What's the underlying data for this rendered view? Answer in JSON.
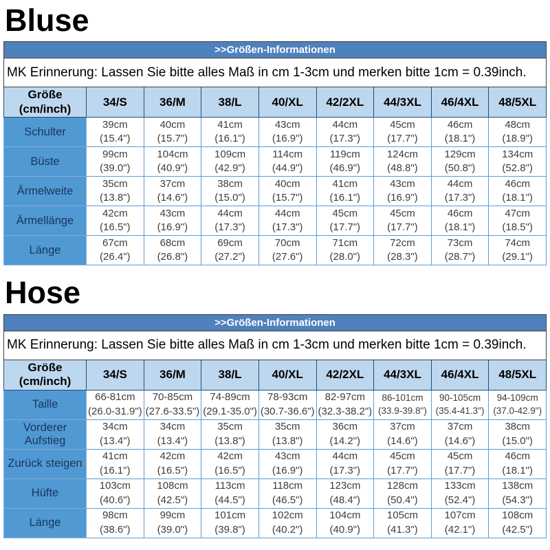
{
  "colors": {
    "info_bar_bg": "#4f81bd",
    "info_bar_text": "#ffffff",
    "column_header_bg": "#bdd7ee",
    "row_label_bg": "#5199d3",
    "row_label_text": "#17375e",
    "data_cell_border": "#5b9bd5",
    "header_cell_border": "#1f4e79"
  },
  "sections": [
    {
      "id": "bluse",
      "title": "Bluse",
      "info_header": ">>Größen-Informationen",
      "reminder": "MK Erinnerung: Lassen Sie bitte alles Maß in cm 1-3cm und merken bitte 1cm = 0.39inch.",
      "corner": {
        "line1": "Größe",
        "line2": "(cm/inch)"
      },
      "sizes": [
        "34/S",
        "36/M",
        "38/L",
        "40/XL",
        "42/2XL",
        "44/3XL",
        "46/4XL",
        "48/5XL"
      ],
      "rows": [
        {
          "label": "Schulter",
          "cells": [
            {
              "cm": "39cm",
              "inch": "(15.4\")"
            },
            {
              "cm": "40cm",
              "inch": "(15.7\")"
            },
            {
              "cm": "41cm",
              "inch": "(16.1\")"
            },
            {
              "cm": "43cm",
              "inch": "(16.9\")"
            },
            {
              "cm": "44cm",
              "inch": "(17.3\")"
            },
            {
              "cm": "45cm",
              "inch": "(17.7\")"
            },
            {
              "cm": "46cm",
              "inch": "(18.1\")"
            },
            {
              "cm": "48cm",
              "inch": "(18.9\")"
            }
          ]
        },
        {
          "label": "Büste",
          "cells": [
            {
              "cm": "99cm",
              "inch": "(39.0\")"
            },
            {
              "cm": "104cm",
              "inch": "(40.9\")"
            },
            {
              "cm": "109cm",
              "inch": "(42.9\")"
            },
            {
              "cm": "114cm",
              "inch": "(44.9\")"
            },
            {
              "cm": "119cm",
              "inch": "(46.9\")"
            },
            {
              "cm": "124cm",
              "inch": "(48.8\")"
            },
            {
              "cm": "129cm",
              "inch": "(50.8\")"
            },
            {
              "cm": "134cm",
              "inch": "(52.8\")"
            }
          ]
        },
        {
          "label": "Ärmelweite",
          "cells": [
            {
              "cm": "35cm",
              "inch": "(13.8\")"
            },
            {
              "cm": "37cm",
              "inch": "(14.6\")"
            },
            {
              "cm": "38cm",
              "inch": "(15.0\")"
            },
            {
              "cm": "40cm",
              "inch": "(15.7\")"
            },
            {
              "cm": "41cm",
              "inch": "(16.1\")"
            },
            {
              "cm": "43cm",
              "inch": "(16.9\")"
            },
            {
              "cm": "44cm",
              "inch": "(17.3\")"
            },
            {
              "cm": "46cm",
              "inch": "(18.1\")"
            }
          ]
        },
        {
          "label": "Ärmellänge",
          "cells": [
            {
              "cm": "42cm",
              "inch": "(16.5\")"
            },
            {
              "cm": "43cm",
              "inch": "(16.9\")"
            },
            {
              "cm": "44cm",
              "inch": "(17.3\")"
            },
            {
              "cm": "44cm",
              "inch": "(17.3\")"
            },
            {
              "cm": "45cm",
              "inch": "(17.7\")"
            },
            {
              "cm": "45cm",
              "inch": "(17.7\")"
            },
            {
              "cm": "46cm",
              "inch": "(18.1\")"
            },
            {
              "cm": "47cm",
              "inch": "(18.5\")"
            }
          ]
        },
        {
          "label": "Länge",
          "cells": [
            {
              "cm": "67cm",
              "inch": "(26.4\")"
            },
            {
              "cm": "68cm",
              "inch": "(26.8\")"
            },
            {
              "cm": "69cm",
              "inch": "(27.2\")"
            },
            {
              "cm": "70cm",
              "inch": "(27.6\")"
            },
            {
              "cm": "71cm",
              "inch": "(28.0\")"
            },
            {
              "cm": "72cm",
              "inch": "(28.3\")"
            },
            {
              "cm": "73cm",
              "inch": "(28.7\")"
            },
            {
              "cm": "74cm",
              "inch": "(29.1\")"
            }
          ]
        }
      ]
    },
    {
      "id": "hose",
      "title": "Hose",
      "info_header": ">>Größen-Informationen",
      "reminder": "MK Erinnerung: Lassen Sie bitte alles Maß in cm 1-3cm und merken bitte 1cm = 0.39inch.",
      "corner": {
        "line1": "Größe",
        "line2": "(cm/inch)"
      },
      "sizes": [
        "34/S",
        "36/M",
        "38/L",
        "40/XL",
        "42/2XL",
        "44/3XL",
        "46/4XL",
        "48/5XL"
      ],
      "rows": [
        {
          "label": "Taille",
          "cells": [
            {
              "cm": "66-81cm",
              "inch": "(26.0-31.9\")"
            },
            {
              "cm": "70-85cm",
              "inch": "(27.6-33.5\")"
            },
            {
              "cm": "74-89cm",
              "inch": "(29.1-35.0\")"
            },
            {
              "cm": "78-93cm",
              "inch": "(30.7-36.6\")"
            },
            {
              "cm": "82-97cm",
              "inch": "(32.3-38.2\")"
            },
            {
              "cm": "86-101cm",
              "inch": "(33.9-39.8\")"
            },
            {
              "cm": "90-105cm",
              "inch": "(35.4-41.3\")"
            },
            {
              "cm": "94-109cm",
              "inch": "(37.0-42.9\")"
            }
          ]
        },
        {
          "label": "Vorderer Aufstieg",
          "cells": [
            {
              "cm": "34cm",
              "inch": "(13.4\")"
            },
            {
              "cm": "34cm",
              "inch": "(13.4\")"
            },
            {
              "cm": "35cm",
              "inch": "(13.8\")"
            },
            {
              "cm": "35cm",
              "inch": "(13.8\")"
            },
            {
              "cm": "36cm",
              "inch": "(14.2\")"
            },
            {
              "cm": "37cm",
              "inch": "(14.6\")"
            },
            {
              "cm": "37cm",
              "inch": "(14.6\")"
            },
            {
              "cm": "38cm",
              "inch": "(15.0\")"
            }
          ]
        },
        {
          "label": "Zurück steigen",
          "cells": [
            {
              "cm": "41cm",
              "inch": "(16.1\")"
            },
            {
              "cm": "42cm",
              "inch": "(16.5\")"
            },
            {
              "cm": "42cm",
              "inch": "(16.5\")"
            },
            {
              "cm": "43cm",
              "inch": "(16.9\")"
            },
            {
              "cm": "44cm",
              "inch": "(17.3\")"
            },
            {
              "cm": "45cm",
              "inch": "(17.7\")"
            },
            {
              "cm": "45cm",
              "inch": "(17.7\")"
            },
            {
              "cm": "46cm",
              "inch": "(18.1\")"
            }
          ]
        },
        {
          "label": "Hüfte",
          "cells": [
            {
              "cm": "103cm",
              "inch": "(40.6\")"
            },
            {
              "cm": "108cm",
              "inch": "(42.5\")"
            },
            {
              "cm": "113cm",
              "inch": "(44.5\")"
            },
            {
              "cm": "118cm",
              "inch": "(46.5\")"
            },
            {
              "cm": "123cm",
              "inch": "(48.4\")"
            },
            {
              "cm": "128cm",
              "inch": "(50.4\")"
            },
            {
              "cm": "133cm",
              "inch": "(52.4\")"
            },
            {
              "cm": "138cm",
              "inch": "(54.3\")"
            }
          ]
        },
        {
          "label": "Länge",
          "cells": [
            {
              "cm": "98cm",
              "inch": "(38.6\")"
            },
            {
              "cm": "99cm",
              "inch": "(39.0\")"
            },
            {
              "cm": "101cm",
              "inch": "(39.8\")"
            },
            {
              "cm": "102cm",
              "inch": "(40.2\")"
            },
            {
              "cm": "104cm",
              "inch": "(40.9\")"
            },
            {
              "cm": "105cm",
              "inch": "(41.3\")"
            },
            {
              "cm": "107cm",
              "inch": "(42.1\")"
            },
            {
              "cm": "108cm",
              "inch": "(42.5\")"
            }
          ]
        }
      ]
    }
  ]
}
